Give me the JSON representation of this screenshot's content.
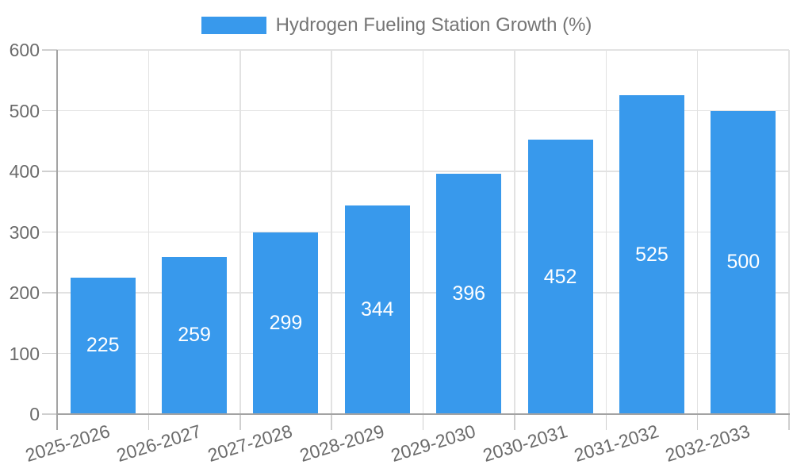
{
  "chart_data": {
    "type": "bar",
    "title": "Hydrogen Fueling Station Growth (%)",
    "categories": [
      "2025-2026",
      "2026-2027",
      "2027-2028",
      "2028-2029",
      "2029-2030",
      "2030-2031",
      "2031-2032",
      "2032-2033"
    ],
    "values": [
      225,
      259,
      299,
      344,
      396,
      452,
      525,
      500
    ],
    "xlabel": "",
    "ylabel": "",
    "ylim": [
      0,
      600
    ],
    "yticks": [
      0,
      100,
      200,
      300,
      400,
      500,
      600
    ],
    "grid": true,
    "legend_position": "top-center",
    "value_labels": "inside-center",
    "colors": {
      "bar": "#3899ec",
      "value_label": "#ffffff",
      "axis_text": "#6b6b6b",
      "legend_text": "#757575",
      "gridline": "#e2e2e2",
      "tick": "#cfcfcf",
      "axis_line": "#a3a3a3"
    }
  }
}
